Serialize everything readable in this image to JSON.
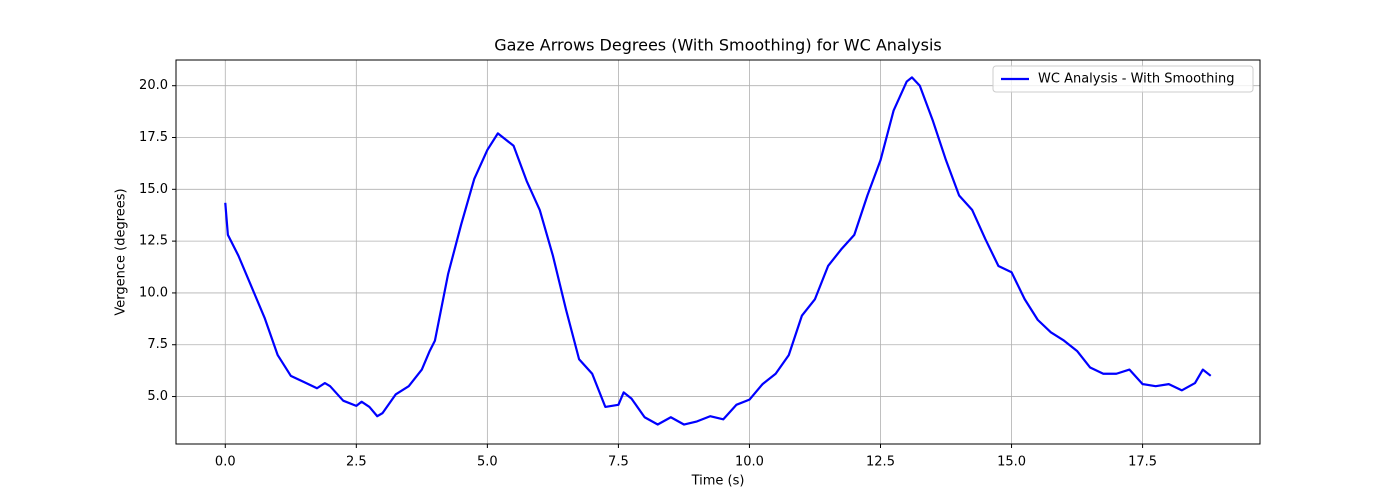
{
  "chart_data": {
    "type": "line",
    "title": "Gaze Arrows Degrees (With Smoothing) for WC Analysis",
    "xlabel": "Time (s)",
    "ylabel": "Vergence (degrees)",
    "x": [
      0,
      0.05,
      0.25,
      0.5,
      0.75,
      1.0,
      1.25,
      1.5,
      1.75,
      1.9,
      2.0,
      2.25,
      2.5,
      2.6,
      2.75,
      2.9,
      3.0,
      3.25,
      3.5,
      3.75,
      3.9,
      4.0,
      4.25,
      4.5,
      4.75,
      5.0,
      5.2,
      5.5,
      5.75,
      6.0,
      6.25,
      6.5,
      6.75,
      7.0,
      7.25,
      7.5,
      7.6,
      7.75,
      8.0,
      8.25,
      8.5,
      8.75,
      9.0,
      9.25,
      9.5,
      9.75,
      10.0,
      10.25,
      10.5,
      10.75,
      11.0,
      11.25,
      11.5,
      11.75,
      12.0,
      12.25,
      12.5,
      12.75,
      13.0,
      13.1,
      13.25,
      13.5,
      13.75,
      14.0,
      14.25,
      14.5,
      14.75,
      15.0,
      15.25,
      15.5,
      15.75,
      16.0,
      16.25,
      16.5,
      16.75,
      17.0,
      17.25,
      17.5,
      17.75,
      18.0,
      18.25,
      18.5,
      18.65,
      18.8
    ],
    "series": [
      {
        "name": "WC Analysis - With Smoothing",
        "color": "#0000ff",
        "values": [
          14.35,
          12.8,
          11.8,
          10.3,
          8.8,
          7.0,
          6.0,
          5.7,
          5.4,
          5.65,
          5.5,
          4.8,
          4.55,
          4.75,
          4.5,
          4.05,
          4.2,
          5.1,
          5.5,
          6.3,
          7.2,
          7.7,
          10.9,
          13.3,
          15.5,
          16.9,
          17.7,
          17.1,
          15.4,
          14.0,
          11.8,
          9.2,
          6.8,
          6.1,
          4.5,
          4.6,
          5.2,
          4.9,
          4.0,
          3.65,
          4.0,
          3.65,
          3.8,
          4.05,
          3.9,
          4.6,
          4.85,
          5.6,
          6.1,
          7.0,
          8.9,
          9.7,
          11.3,
          12.1,
          12.8,
          14.7,
          16.4,
          18.8,
          20.2,
          20.4,
          20.0,
          18.3,
          16.4,
          14.7,
          14.0,
          12.6,
          11.3,
          11.0,
          9.7,
          8.7,
          8.1,
          7.7,
          7.2,
          6.4,
          6.1,
          6.1,
          6.3,
          5.6,
          5.5,
          5.6,
          5.3,
          5.65,
          6.3,
          6.0
        ]
      }
    ],
    "xlim": [
      -0.94,
      19.74
    ],
    "ylim": [
      2.71,
      21.24
    ],
    "xticks": [
      {
        "value": 0,
        "label": "0.0"
      },
      {
        "value": 2.5,
        "label": "2.5"
      },
      {
        "value": 5,
        "label": "5.0"
      },
      {
        "value": 7.5,
        "label": "7.5"
      },
      {
        "value": 10,
        "label": "10.0"
      },
      {
        "value": 12.5,
        "label": "12.5"
      },
      {
        "value": 15,
        "label": "15.0"
      },
      {
        "value": 17.5,
        "label": "17.5"
      }
    ],
    "yticks": [
      {
        "value": 5,
        "label": "5.0"
      },
      {
        "value": 7.5,
        "label": "7.5"
      },
      {
        "value": 10,
        "label": "10.0"
      },
      {
        "value": 12.5,
        "label": "12.5"
      },
      {
        "value": 15,
        "label": "15.0"
      },
      {
        "value": 17.5,
        "label": "17.5"
      },
      {
        "value": 20,
        "label": "20.0"
      }
    ],
    "grid": true,
    "legend": "upper right"
  }
}
